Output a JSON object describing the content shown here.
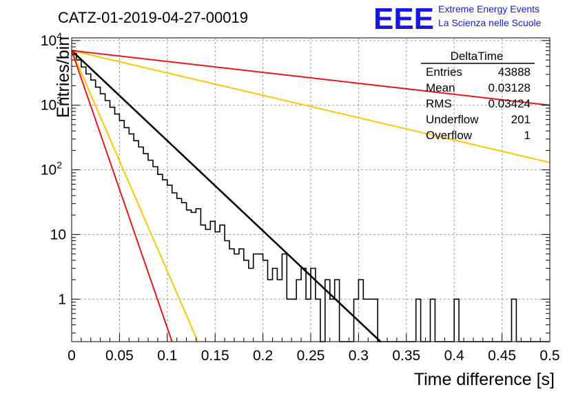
{
  "title": "CATZ-01-2019-04-27-00019",
  "logo": {
    "mark": "EEE",
    "line1": "Extreme Energy Events",
    "line2": "La Scienza nelle Scuole",
    "color": "#1616e6"
  },
  "stats": {
    "name": "DeltaTime",
    "rows": [
      {
        "label": "Entries",
        "value": "43888"
      },
      {
        "label": "Mean",
        "value": "0.03128"
      },
      {
        "label": "RMS",
        "value": "0.03424"
      },
      {
        "label": "Underflow",
        "value": "201"
      },
      {
        "label": "Overflow",
        "value": "1"
      }
    ]
  },
  "chart_data": {
    "type": "line",
    "title": "CATZ-01-2019-04-27-00019",
    "xlabel": "Time difference [s]",
    "ylabel": "Entries/bin",
    "xlim": [
      0,
      0.5
    ],
    "ylim": [
      0.22,
      11000
    ],
    "yscale": "log",
    "grid": true,
    "x_ticks": [
      "0",
      "0.05",
      "0.1",
      "0.15",
      "0.2",
      "0.25",
      "0.3",
      "0.35",
      "0.4",
      "0.45",
      "0.5"
    ],
    "x_tick_values": [
      0,
      0.05,
      0.1,
      0.15,
      0.2,
      0.25,
      0.3,
      0.35,
      0.4,
      0.45,
      0.5
    ],
    "y_ticks": [
      {
        "value": 1,
        "base": "1",
        "exp": ""
      },
      {
        "value": 10,
        "base": "10",
        "exp": ""
      },
      {
        "value": 100,
        "base": "10",
        "exp": "2"
      },
      {
        "value": 1000,
        "base": "10",
        "exp": "3"
      },
      {
        "value": 10000,
        "base": "10",
        "exp": "4"
      }
    ],
    "histogram": {
      "bin_width": 0.005,
      "color": "#000000",
      "values": [
        6300,
        5000,
        3900,
        3050,
        2450,
        1900,
        1500,
        1180,
        930,
        730,
        580,
        450,
        360,
        282,
        225,
        178,
        141,
        112,
        85,
        70,
        58,
        44,
        36,
        31,
        24,
        22,
        25,
        14,
        12,
        16,
        11,
        14,
        8,
        6,
        5,
        6,
        4,
        3,
        5,
        5,
        4,
        2,
        3,
        2,
        5,
        1,
        1,
        2,
        3,
        1,
        3,
        1,
        0,
        2,
        1,
        2,
        0,
        0,
        0,
        1,
        2,
        1,
        1,
        1,
        0,
        0,
        0,
        0,
        0,
        0,
        0,
        0,
        1,
        0,
        0,
        1,
        0,
        0,
        0,
        0,
        1,
        0,
        0,
        0,
        0,
        0,
        0,
        0,
        0,
        0,
        0,
        0,
        1,
        0,
        0,
        0,
        0,
        0,
        0,
        0
      ]
    },
    "series": [
      {
        "color": "#000000",
        "x": [
          0,
          0.323
        ],
        "y": [
          7000,
          0.22
        ]
      },
      {
        "color": "#ffc400",
        "x": [
          0,
          0.132
        ],
        "y": [
          7000,
          0.22
        ]
      },
      {
        "color": "#e8141c",
        "x": [
          0,
          0.105
        ],
        "y": [
          7000,
          0.22
        ]
      },
      {
        "color": "#ffc400",
        "x": [
          0,
          0.5
        ],
        "y": [
          7000,
          130
        ]
      },
      {
        "color": "#e8141c",
        "x": [
          0,
          0.5
        ],
        "y": [
          7000,
          1000
        ]
      }
    ]
  }
}
